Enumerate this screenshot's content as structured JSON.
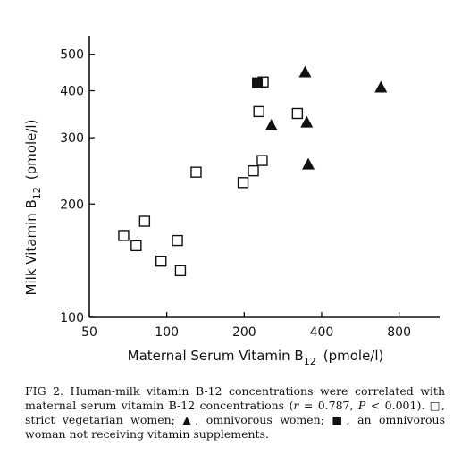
{
  "chart_data": {
    "type": "scatter",
    "xlabel": "Maternal Serum Vitamin B",
    "xlabel_sub": "12",
    "xlabel_unit": "(pmole/l)",
    "ylabel": "Milk Vitamin B",
    "ylabel_sub": "12",
    "ylabel_unit": "(pmole/l)",
    "x_scale": "log",
    "y_scale": "log",
    "xlim": [
      50,
      1150
    ],
    "ylim": [
      100,
      560
    ],
    "x_ticks": [
      50,
      100,
      200,
      400,
      800
    ],
    "y_ticks": [
      100,
      200,
      300,
      400,
      500
    ],
    "grid": false,
    "series": [
      {
        "marker": "open-square",
        "points": [
          {
            "x": 68,
            "y": 165
          },
          {
            "x": 76,
            "y": 155
          },
          {
            "x": 82,
            "y": 180
          },
          {
            "x": 95,
            "y": 141
          },
          {
            "x": 110,
            "y": 160
          },
          {
            "x": 113,
            "y": 133
          },
          {
            "x": 130,
            "y": 243
          },
          {
            "x": 198,
            "y": 228
          },
          {
            "x": 217,
            "y": 245
          },
          {
            "x": 228,
            "y": 352
          },
          {
            "x": 235,
            "y": 261
          },
          {
            "x": 237,
            "y": 422
          },
          {
            "x": 322,
            "y": 348
          }
        ]
      },
      {
        "marker": "filled-triangle",
        "points": [
          {
            "x": 345,
            "y": 450
          },
          {
            "x": 255,
            "y": 325
          },
          {
            "x": 350,
            "y": 331
          },
          {
            "x": 355,
            "y": 256
          },
          {
            "x": 680,
            "y": 410
          }
        ]
      },
      {
        "marker": "filled-square",
        "points": [
          {
            "x": 225,
            "y": 420
          }
        ]
      }
    ]
  },
  "caption": {
    "part1": "FIG 2. Human-milk vitamin B-12 concentrations were correlated with maternal serum vitamin B-12 concentrations (",
    "r_symbol": "r",
    "part2": " = 0.787, ",
    "p_symbol": "P",
    "part3": " < 0.001). ",
    "open_square_glyph": "□",
    "part4": ", strict vegetarian women; ",
    "triangle_glyph": "▲",
    "part5": ", omnivorous women; ",
    "filled_square_glyph": "■",
    "part6": ", an omnivorous woman not receiving vitamin supplements."
  }
}
